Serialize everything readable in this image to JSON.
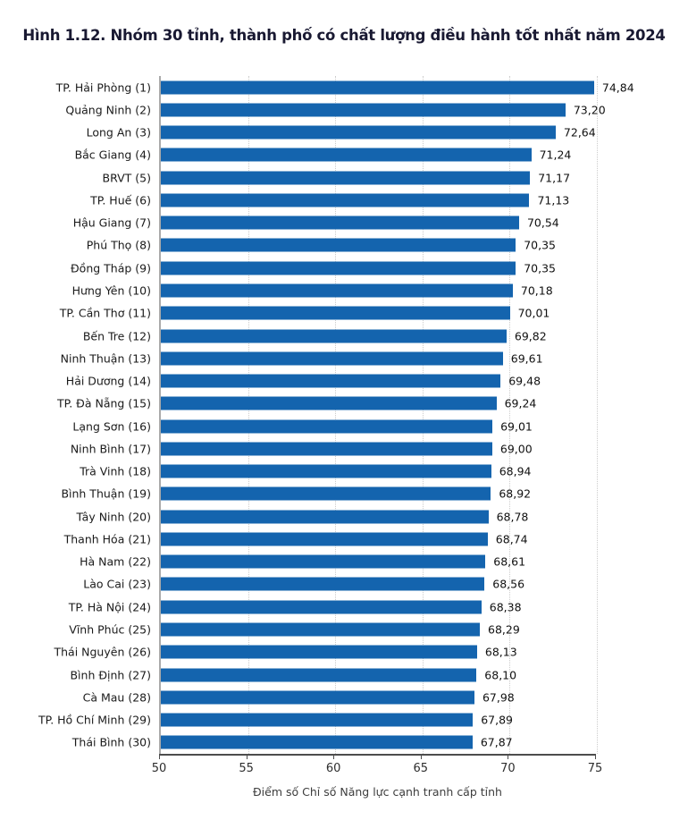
{
  "title": "Hình 1.12. Nhóm 30 tỉnh, thành phố có chất lượng điều hành tốt nhất năm 2024",
  "colors": {
    "bar": "#1464ae",
    "title_text": "#191932",
    "axis_line": "#4d4d4d",
    "left_axis_line": "#aaaaaa",
    "gridline": "#cccccc",
    "label_text": "#1a1a1a"
  },
  "chart_data": {
    "type": "bar",
    "orientation": "horizontal",
    "title": "Hình 1.12. Nhóm 30 tỉnh, thành phố có chất lượng điều hành tốt nhất năm 2024",
    "xlabel": "Điểm số Chỉ số Năng lực cạnh tranh cấp tỉnh",
    "ylabel": "",
    "xlim": [
      50,
      75
    ],
    "xticks": [
      50,
      55,
      60,
      65,
      70,
      75
    ],
    "grid": "vertical dotted at xticks",
    "legend": "none",
    "categories": [
      "TP. Hải Phòng (1)",
      "Quảng Ninh (2)",
      "Long An (3)",
      "Bắc Giang (4)",
      "BRVT (5)",
      "TP. Huế (6)",
      "Hậu Giang (7)",
      "Phú Thọ (8)",
      "Đồng Tháp (9)",
      "Hưng Yên (10)",
      "TP. Cần Thơ (11)",
      "Bến Tre (12)",
      "Ninh Thuận (13)",
      "Hải Dương (14)",
      "TP. Đà Nẵng (15)",
      "Lạng Sơn (16)",
      "Ninh Bình (17)",
      "Trà Vinh (18)",
      "Bình Thuận (19)",
      "Tây Ninh (20)",
      "Thanh Hóa (21)",
      "Hà Nam (22)",
      "Lào Cai (23)",
      "TP. Hà Nội (24)",
      "Vĩnh Phúc (25)",
      "Thái Nguyên (26)",
      "Bình Định (27)",
      "Cà Mau (28)",
      "TP. Hồ Chí Minh (29)",
      "Thái Bình (30)"
    ],
    "values": [
      74.84,
      73.2,
      72.64,
      71.24,
      71.17,
      71.13,
      70.54,
      70.35,
      70.35,
      70.18,
      70.01,
      69.82,
      69.61,
      69.48,
      69.24,
      69.01,
      69.0,
      68.94,
      68.92,
      68.78,
      68.74,
      68.61,
      68.56,
      68.38,
      68.29,
      68.13,
      68.1,
      67.98,
      67.89,
      67.87
    ],
    "value_labels": [
      "74,84",
      "73,20",
      "72,64",
      "71,24",
      "71,17",
      "71,13",
      "70,54",
      "70,35",
      "70,35",
      "70,18",
      "70,01",
      "69,82",
      "69,61",
      "69,48",
      "69,24",
      "69,01",
      "69,00",
      "68,94",
      "68,92",
      "68,78",
      "68,74",
      "68,61",
      "68,56",
      "68,38",
      "68,29",
      "68,13",
      "68,10",
      "67,98",
      "67,89",
      "67,87"
    ]
  }
}
